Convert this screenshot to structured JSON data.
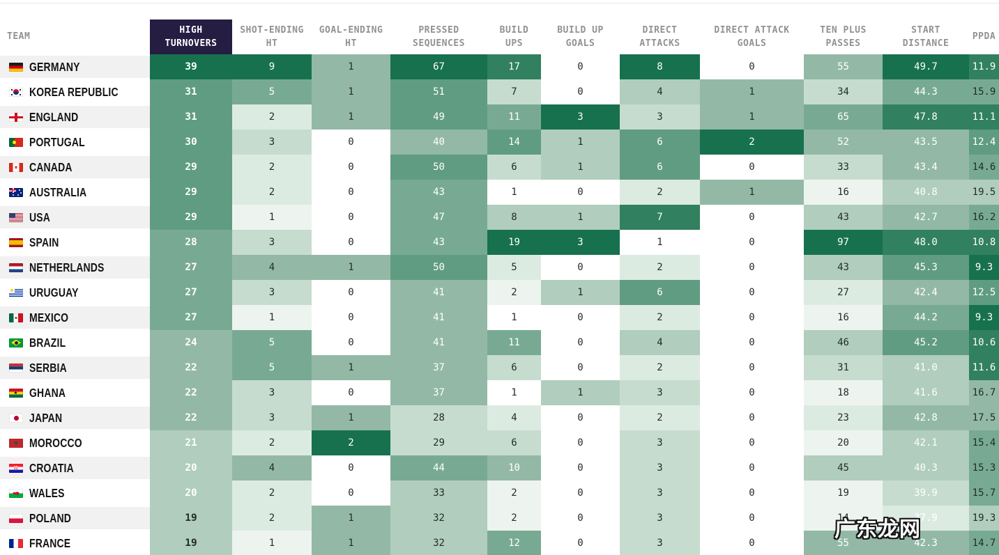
{
  "header": {
    "team_label": "TEAM",
    "columns": [
      {
        "id": "high-turnovers",
        "label": "HIGH\nTURNOVERS",
        "highlight": true
      },
      {
        "id": "shot-ending-ht",
        "label": "SHOT-ENDING\nHT",
        "highlight": false
      },
      {
        "id": "goal-ending-ht",
        "label": "GOAL-ENDING\nHT",
        "highlight": false
      },
      {
        "id": "pressed-sequences",
        "label": "PRESSED\nSEQUENCES",
        "highlight": false
      },
      {
        "id": "build-ups",
        "label": "BUILD\nUPS",
        "highlight": false
      },
      {
        "id": "build-up-goals",
        "label": "BUILD UP\nGOALS",
        "highlight": false
      },
      {
        "id": "direct-attacks",
        "label": "DIRECT\nATTACKS",
        "highlight": false
      },
      {
        "id": "direct-attack-goals",
        "label": "DIRECT ATTACK\nGOALS",
        "highlight": false
      },
      {
        "id": "ten-plus-passes",
        "label": "TEN PLUS\nPASSES",
        "highlight": false
      },
      {
        "id": "start-distance",
        "label": "START\nDISTANCE",
        "highlight": false
      },
      {
        "id": "ppda",
        "label": "PPDA",
        "highlight": false
      }
    ]
  },
  "palette": {
    "shades": [
      "#ffffff",
      "#edf4ef",
      "#dcebe2",
      "#c6dccf",
      "#b0cdbe",
      "#93b9a6",
      "#78aa93",
      "#609c81",
      "#31805f",
      "#17714e"
    ],
    "text_light": "#ffffff",
    "text_dark": "#232d28",
    "header_highlight_bg": "#251d42",
    "header_highlight_text": "#ffffff",
    "header_text": "#929292",
    "row_stripe": "#f1f1f1"
  },
  "watermark": {
    "text": "广东龙网"
  },
  "chart_data": {
    "type": "table",
    "title": "",
    "columns": [
      "HIGH TURNOVERS",
      "SHOT-ENDING HT",
      "GOAL-ENDING HT",
      "PRESSED SEQUENCES",
      "BUILD UPS",
      "BUILD UP GOALS",
      "DIRECT ATTACKS",
      "DIRECT ATTACK GOALS",
      "TEN PLUS PASSES",
      "START DISTANCE",
      "PPDA"
    ],
    "rows": [
      {
        "team": "GERMANY",
        "flag": "de",
        "values": [
          "39",
          "9",
          "1",
          "67",
          "17",
          "0",
          "8",
          "0",
          "55",
          "49.7",
          "11.9"
        ],
        "shades": [
          9,
          9,
          5,
          9,
          8,
          0,
          9,
          0,
          5,
          9,
          8
        ],
        "text": [
          "w",
          "w",
          "d",
          "w",
          "w",
          "d",
          "w",
          "d",
          "w",
          "w",
          "w"
        ]
      },
      {
        "team": "KOREA REPUBLIC",
        "flag": "kr",
        "values": [
          "31",
          "5",
          "1",
          "51",
          "7",
          "0",
          "4",
          "1",
          "34",
          "44.3",
          "15.9"
        ],
        "shades": [
          7,
          6,
          5,
          7,
          3,
          0,
          4,
          5,
          3,
          6,
          6
        ],
        "text": [
          "w",
          "w",
          "d",
          "w",
          "d",
          "d",
          "d",
          "d",
          "d",
          "w",
          "d"
        ]
      },
      {
        "team": "ENGLAND",
        "flag": "eng",
        "values": [
          "31",
          "2",
          "1",
          "49",
          "11",
          "3",
          "3",
          "1",
          "65",
          "47.8",
          "11.1"
        ],
        "shades": [
          7,
          2,
          5,
          7,
          6,
          9,
          3,
          5,
          6,
          8,
          8
        ],
        "text": [
          "w",
          "d",
          "d",
          "w",
          "w",
          "w",
          "d",
          "d",
          "w",
          "w",
          "w"
        ]
      },
      {
        "team": "PORTUGAL",
        "flag": "pt",
        "values": [
          "30",
          "3",
          "0",
          "40",
          "14",
          "1",
          "6",
          "2",
          "52",
          "43.5",
          "12.4"
        ],
        "shades": [
          7,
          3,
          0,
          5,
          7,
          4,
          7,
          9,
          5,
          5,
          7
        ],
        "text": [
          "w",
          "d",
          "d",
          "w",
          "w",
          "d",
          "w",
          "w",
          "w",
          "w",
          "w"
        ]
      },
      {
        "team": "CANADA",
        "flag": "ca",
        "values": [
          "29",
          "2",
          "0",
          "50",
          "6",
          "1",
          "6",
          "0",
          "33",
          "43.4",
          "14.6"
        ],
        "shades": [
          7,
          2,
          0,
          7,
          3,
          4,
          7,
          0,
          3,
          5,
          6
        ],
        "text": [
          "w",
          "d",
          "d",
          "w",
          "d",
          "d",
          "w",
          "d",
          "d",
          "w",
          "d"
        ]
      },
      {
        "team": "AUSTRALIA",
        "flag": "au",
        "values": [
          "29",
          "2",
          "0",
          "43",
          "1",
          "0",
          "2",
          "1",
          "16",
          "40.8",
          "19.5"
        ],
        "shades": [
          7,
          2,
          0,
          6,
          0,
          0,
          2,
          5,
          1,
          4,
          4
        ],
        "text": [
          "w",
          "d",
          "d",
          "w",
          "d",
          "d",
          "d",
          "d",
          "d",
          "w",
          "d"
        ]
      },
      {
        "team": "USA",
        "flag": "us",
        "values": [
          "29",
          "1",
          "0",
          "47",
          "8",
          "1",
          "7",
          "0",
          "43",
          "42.7",
          "16.2"
        ],
        "shades": [
          7,
          1,
          0,
          6,
          4,
          4,
          8,
          0,
          4,
          5,
          6
        ],
        "text": [
          "w",
          "d",
          "d",
          "w",
          "d",
          "d",
          "w",
          "d",
          "d",
          "w",
          "d"
        ]
      },
      {
        "team": "SPAIN",
        "flag": "es",
        "values": [
          "28",
          "3",
          "0",
          "43",
          "19",
          "3",
          "1",
          "0",
          "97",
          "48.0",
          "10.8"
        ],
        "shades": [
          6,
          3,
          0,
          6,
          9,
          9,
          0,
          0,
          9,
          8,
          8
        ],
        "text": [
          "w",
          "d",
          "d",
          "w",
          "w",
          "w",
          "d",
          "d",
          "w",
          "w",
          "w"
        ]
      },
      {
        "team": "NETHERLANDS",
        "flag": "nl",
        "values": [
          "27",
          "4",
          "1",
          "50",
          "5",
          "0",
          "2",
          "0",
          "43",
          "45.3",
          "9.3"
        ],
        "shades": [
          6,
          5,
          5,
          7,
          2,
          0,
          2,
          0,
          4,
          7,
          9
        ],
        "text": [
          "w",
          "d",
          "d",
          "w",
          "d",
          "d",
          "d",
          "d",
          "d",
          "w",
          "w"
        ]
      },
      {
        "team": "URUGUAY",
        "flag": "uy",
        "values": [
          "27",
          "3",
          "0",
          "41",
          "2",
          "1",
          "6",
          "0",
          "27",
          "42.4",
          "12.5"
        ],
        "shades": [
          6,
          3,
          0,
          5,
          1,
          4,
          7,
          0,
          2,
          5,
          7
        ],
        "text": [
          "w",
          "d",
          "d",
          "w",
          "d",
          "d",
          "w",
          "d",
          "d",
          "w",
          "w"
        ]
      },
      {
        "team": "MEXICO",
        "flag": "mx",
        "values": [
          "27",
          "1",
          "0",
          "41",
          "1",
          "0",
          "2",
          "0",
          "16",
          "44.2",
          "9.3"
        ],
        "shades": [
          6,
          1,
          0,
          5,
          0,
          0,
          2,
          0,
          1,
          6,
          9
        ],
        "text": [
          "w",
          "d",
          "d",
          "w",
          "d",
          "d",
          "d",
          "d",
          "d",
          "w",
          "w"
        ]
      },
      {
        "team": "BRAZIL",
        "flag": "br",
        "values": [
          "24",
          "5",
          "0",
          "41",
          "11",
          "0",
          "4",
          "0",
          "46",
          "45.2",
          "10.6"
        ],
        "shades": [
          5,
          6,
          0,
          5,
          6,
          0,
          4,
          0,
          4,
          7,
          8
        ],
        "text": [
          "w",
          "w",
          "d",
          "w",
          "w",
          "d",
          "d",
          "d",
          "d",
          "w",
          "w"
        ]
      },
      {
        "team": "SERBIA",
        "flag": "rs",
        "values": [
          "22",
          "5",
          "1",
          "37",
          "6",
          "0",
          "2",
          "0",
          "31",
          "41.0",
          "11.6"
        ],
        "shades": [
          5,
          6,
          5,
          5,
          3,
          0,
          2,
          0,
          3,
          4,
          8
        ],
        "text": [
          "w",
          "w",
          "d",
          "w",
          "d",
          "d",
          "d",
          "d",
          "d",
          "w",
          "w"
        ]
      },
      {
        "team": "GHANA",
        "flag": "gh",
        "values": [
          "22",
          "3",
          "0",
          "37",
          "1",
          "1",
          "3",
          "0",
          "18",
          "41.6",
          "16.7"
        ],
        "shades": [
          5,
          3,
          0,
          5,
          0,
          4,
          3,
          0,
          1,
          4,
          5
        ],
        "text": [
          "w",
          "d",
          "d",
          "w",
          "d",
          "d",
          "d",
          "d",
          "d",
          "w",
          "d"
        ]
      },
      {
        "team": "JAPAN",
        "flag": "jp",
        "values": [
          "22",
          "3",
          "1",
          "28",
          "4",
          "0",
          "2",
          "0",
          "23",
          "42.8",
          "17.5"
        ],
        "shades": [
          5,
          3,
          5,
          3,
          2,
          0,
          2,
          0,
          2,
          5,
          5
        ],
        "text": [
          "w",
          "d",
          "d",
          "d",
          "d",
          "d",
          "d",
          "d",
          "d",
          "w",
          "d"
        ]
      },
      {
        "team": "MOROCCO",
        "flag": "ma",
        "values": [
          "21",
          "2",
          "2",
          "29",
          "6",
          "0",
          "3",
          "0",
          "20",
          "42.1",
          "15.4"
        ],
        "shades": [
          4,
          2,
          9,
          3,
          3,
          0,
          3,
          0,
          1,
          4,
          6
        ],
        "text": [
          "w",
          "d",
          "w",
          "d",
          "d",
          "d",
          "d",
          "d",
          "d",
          "w",
          "d"
        ]
      },
      {
        "team": "CROATIA",
        "flag": "hr",
        "values": [
          "20",
          "4",
          "0",
          "44",
          "10",
          "0",
          "3",
          "0",
          "45",
          "40.3",
          "15.3"
        ],
        "shades": [
          4,
          5,
          0,
          6,
          5,
          0,
          3,
          0,
          4,
          4,
          6
        ],
        "text": [
          "w",
          "d",
          "d",
          "w",
          "w",
          "d",
          "d",
          "d",
          "d",
          "w",
          "d"
        ]
      },
      {
        "team": "WALES",
        "flag": "wls",
        "values": [
          "20",
          "2",
          "0",
          "33",
          "2",
          "0",
          "3",
          "0",
          "19",
          "39.9",
          "15.7"
        ],
        "shades": [
          4,
          2,
          0,
          4,
          1,
          0,
          3,
          0,
          1,
          3,
          6
        ],
        "text": [
          "w",
          "d",
          "d",
          "d",
          "d",
          "d",
          "d",
          "d",
          "d",
          "w",
          "d"
        ]
      },
      {
        "team": "POLAND",
        "flag": "pl",
        "values": [
          "19",
          "2",
          "1",
          "32",
          "2",
          "0",
          "3",
          "0",
          "14",
          "37.9",
          "19.3"
        ],
        "shades": [
          4,
          2,
          5,
          4,
          1,
          0,
          3,
          0,
          1,
          2,
          4
        ],
        "text": [
          "d",
          "d",
          "d",
          "d",
          "d",
          "d",
          "d",
          "d",
          "d",
          "w",
          "d"
        ]
      },
      {
        "team": "FRANCE",
        "flag": "fr",
        "values": [
          "19",
          "1",
          "1",
          "32",
          "12",
          "0",
          "3",
          "0",
          "55",
          "42.3",
          "14.7"
        ],
        "shades": [
          4,
          1,
          5,
          4,
          6,
          0,
          3,
          0,
          5,
          5,
          6
        ],
        "text": [
          "d",
          "d",
          "d",
          "d",
          "w",
          "d",
          "d",
          "d",
          "w",
          "w",
          "d"
        ]
      }
    ]
  }
}
